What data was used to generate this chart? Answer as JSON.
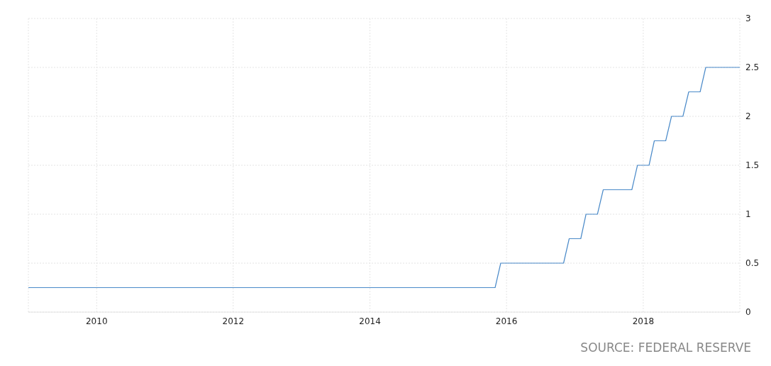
{
  "chart_data": {
    "type": "line",
    "x": [
      "2009-01",
      "2015-11",
      "2015-12",
      "2016-11",
      "2016-12",
      "2017-02",
      "2017-03",
      "2017-05",
      "2017-06",
      "2017-11",
      "2017-12",
      "2018-02",
      "2018-03",
      "2018-05",
      "2018-06",
      "2018-08",
      "2018-09",
      "2018-11",
      "2018-12",
      "2019-06"
    ],
    "series": [
      {
        "color": "#4a8ac9",
        "values": [
          0.25,
          0.25,
          0.5,
          0.5,
          0.75,
          0.75,
          1,
          1,
          1.25,
          1.25,
          1.5,
          1.5,
          1.75,
          1.75,
          2,
          2,
          2.25,
          2.25,
          2.5,
          2.5
        ]
      }
    ],
    "xlim": [
      "2009-01",
      "2019-06"
    ],
    "xticks": [
      "2010",
      "2012",
      "2014",
      "2016",
      "2018"
    ],
    "ylim": [
      0,
      3
    ],
    "yticks": [
      0,
      0.5,
      1,
      1.5,
      2,
      2.5,
      3
    ],
    "grid": true,
    "legend": false,
    "marker": "none",
    "line_style": "solid",
    "annotations": [
      "SOURCE: FEDERAL RESERVE"
    ]
  }
}
